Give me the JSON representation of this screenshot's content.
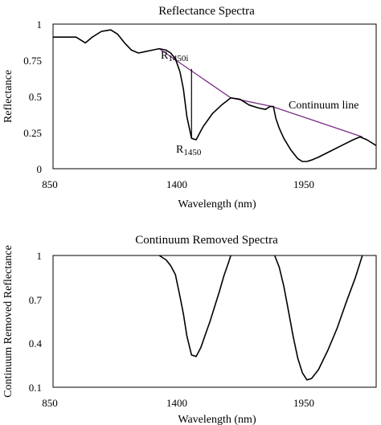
{
  "chart_data": [
    {
      "type": "line",
      "title": "Reflectance Spectra",
      "xlabel": "Wavelength (nm)",
      "ylabel": "Reflectance",
      "xlim": [
        850,
        2250
      ],
      "ylim": [
        0,
        1
      ],
      "x_ticks": [
        "850",
        "1400",
        "1950"
      ],
      "y_ticks": [
        "0",
        "0.25",
        "0.5",
        "0.75",
        "1"
      ],
      "grid": false,
      "series": [
        {
          "x": [
            850,
            950,
            990,
            1020,
            1060,
            1100,
            1130,
            1160,
            1190,
            1220,
            1250,
            1280,
            1310,
            1340,
            1360,
            1380,
            1400,
            1415,
            1430,
            1450,
            1470,
            1500,
            1540,
            1580,
            1620,
            1660,
            1700,
            1740,
            1770,
            1790,
            1805,
            1815,
            1830,
            1850,
            1880,
            1910,
            1930,
            1950,
            1970,
            2000,
            2050,
            2100,
            2150,
            2180,
            2210,
            2250
          ],
          "y": [
            0.91,
            0.91,
            0.87,
            0.91,
            0.95,
            0.96,
            0.93,
            0.87,
            0.82,
            0.8,
            0.81,
            0.82,
            0.83,
            0.82,
            0.8,
            0.76,
            0.67,
            0.55,
            0.36,
            0.21,
            0.2,
            0.29,
            0.38,
            0.44,
            0.49,
            0.48,
            0.44,
            0.42,
            0.41,
            0.43,
            0.43,
            0.35,
            0.28,
            0.21,
            0.13,
            0.07,
            0.05,
            0.05,
            0.06,
            0.08,
            0.12,
            0.16,
            0.2,
            0.22,
            0.2,
            0.16
          ]
        },
        {
          "name": "Continuum line",
          "x": [
            1310,
            1620,
            1800,
            2190
          ],
          "y": [
            0.83,
            0.49,
            0.43,
            0.22
          ]
        }
      ],
      "annotations": [
        {
          "label": "R",
          "sub": "1450i",
          "x": 1450,
          "y": 0.69
        },
        {
          "label": "R",
          "sub": "1450",
          "x": 1450,
          "y": 0.21
        },
        {
          "label": "Continuum line",
          "x": 1830,
          "y": 0.43
        }
      ]
    },
    {
      "type": "line",
      "title": "Continuum Removed Spectra",
      "xlabel": "Wavelength (nm)",
      "ylabel": "Continuum Removed Reflectance",
      "xlim": [
        850,
        2250
      ],
      "ylim": [
        0.1,
        1
      ],
      "x_ticks": [
        "850",
        "1400",
        "1950"
      ],
      "y_ticks": [
        "0.1",
        "0.4",
        "0.7",
        "1"
      ],
      "grid": false,
      "series": [
        {
          "x": [
            1310,
            1340,
            1360,
            1380,
            1400,
            1415,
            1430,
            1450,
            1470,
            1490,
            1510,
            1530,
            1550,
            1570,
            1590,
            1610,
            1620
          ],
          "y": [
            1.0,
            0.97,
            0.93,
            0.87,
            0.72,
            0.6,
            0.45,
            0.32,
            0.31,
            0.37,
            0.46,
            0.55,
            0.65,
            0.75,
            0.86,
            0.95,
            1.0
          ]
        },
        {
          "x": [
            1810,
            1830,
            1850,
            1870,
            1890,
            1910,
            1930,
            1950,
            1970,
            2000,
            2040,
            2080,
            2120,
            2160,
            2190
          ],
          "y": [
            1.0,
            0.92,
            0.79,
            0.62,
            0.45,
            0.3,
            0.2,
            0.15,
            0.16,
            0.22,
            0.35,
            0.5,
            0.68,
            0.85,
            1.0
          ]
        }
      ]
    }
  ]
}
